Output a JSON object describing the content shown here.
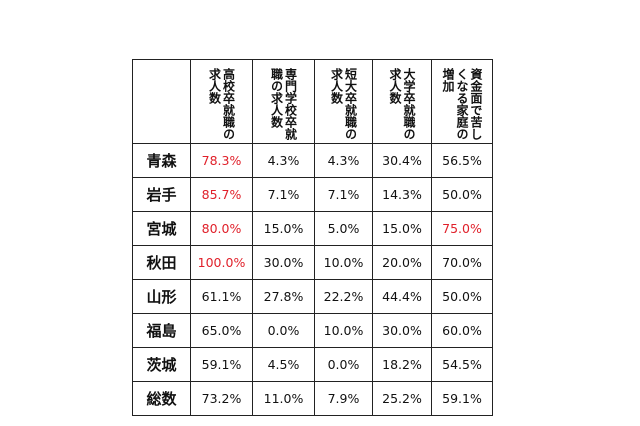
{
  "table": {
    "columns": [
      "",
      "高校卒就職の求人数",
      "専門学校卒就職の求人数",
      "短大卒就職の求人数",
      "大学卒就職の求人数",
      "資金面で苦しくなる家庭の増加"
    ],
    "rows": [
      {
        "label": "青森",
        "values": [
          "78.3%",
          "4.3%",
          "4.3%",
          "30.4%",
          "56.5%"
        ]
      },
      {
        "label": "岩手",
        "values": [
          "85.7%",
          "7.1%",
          "7.1%",
          "14.3%",
          "50.0%"
        ]
      },
      {
        "label": "宮城",
        "values": [
          "80.0%",
          "15.0%",
          "5.0%",
          "15.0%",
          "75.0%"
        ]
      },
      {
        "label": "秋田",
        "values": [
          "100.0%",
          "30.0%",
          "10.0%",
          "20.0%",
          "70.0%"
        ]
      },
      {
        "label": "山形",
        "values": [
          "61.1%",
          "27.8%",
          "22.2%",
          "44.4%",
          "50.0%"
        ]
      },
      {
        "label": "福島",
        "values": [
          "65.0%",
          "0.0%",
          "10.0%",
          "30.0%",
          "60.0%"
        ]
      },
      {
        "label": "茨城",
        "values": [
          "59.1%",
          "4.5%",
          "0.0%",
          "18.2%",
          "54.5%"
        ]
      },
      {
        "label": "総数",
        "values": [
          "73.2%",
          "11.0%",
          "7.9%",
          "25.2%",
          "59.1%"
        ]
      }
    ],
    "highlight_color": "#e0202a",
    "highlighted_cells": [
      [
        0,
        0
      ],
      [
        1,
        0
      ],
      [
        2,
        0
      ],
      [
        2,
        4
      ],
      [
        3,
        0
      ]
    ]
  }
}
